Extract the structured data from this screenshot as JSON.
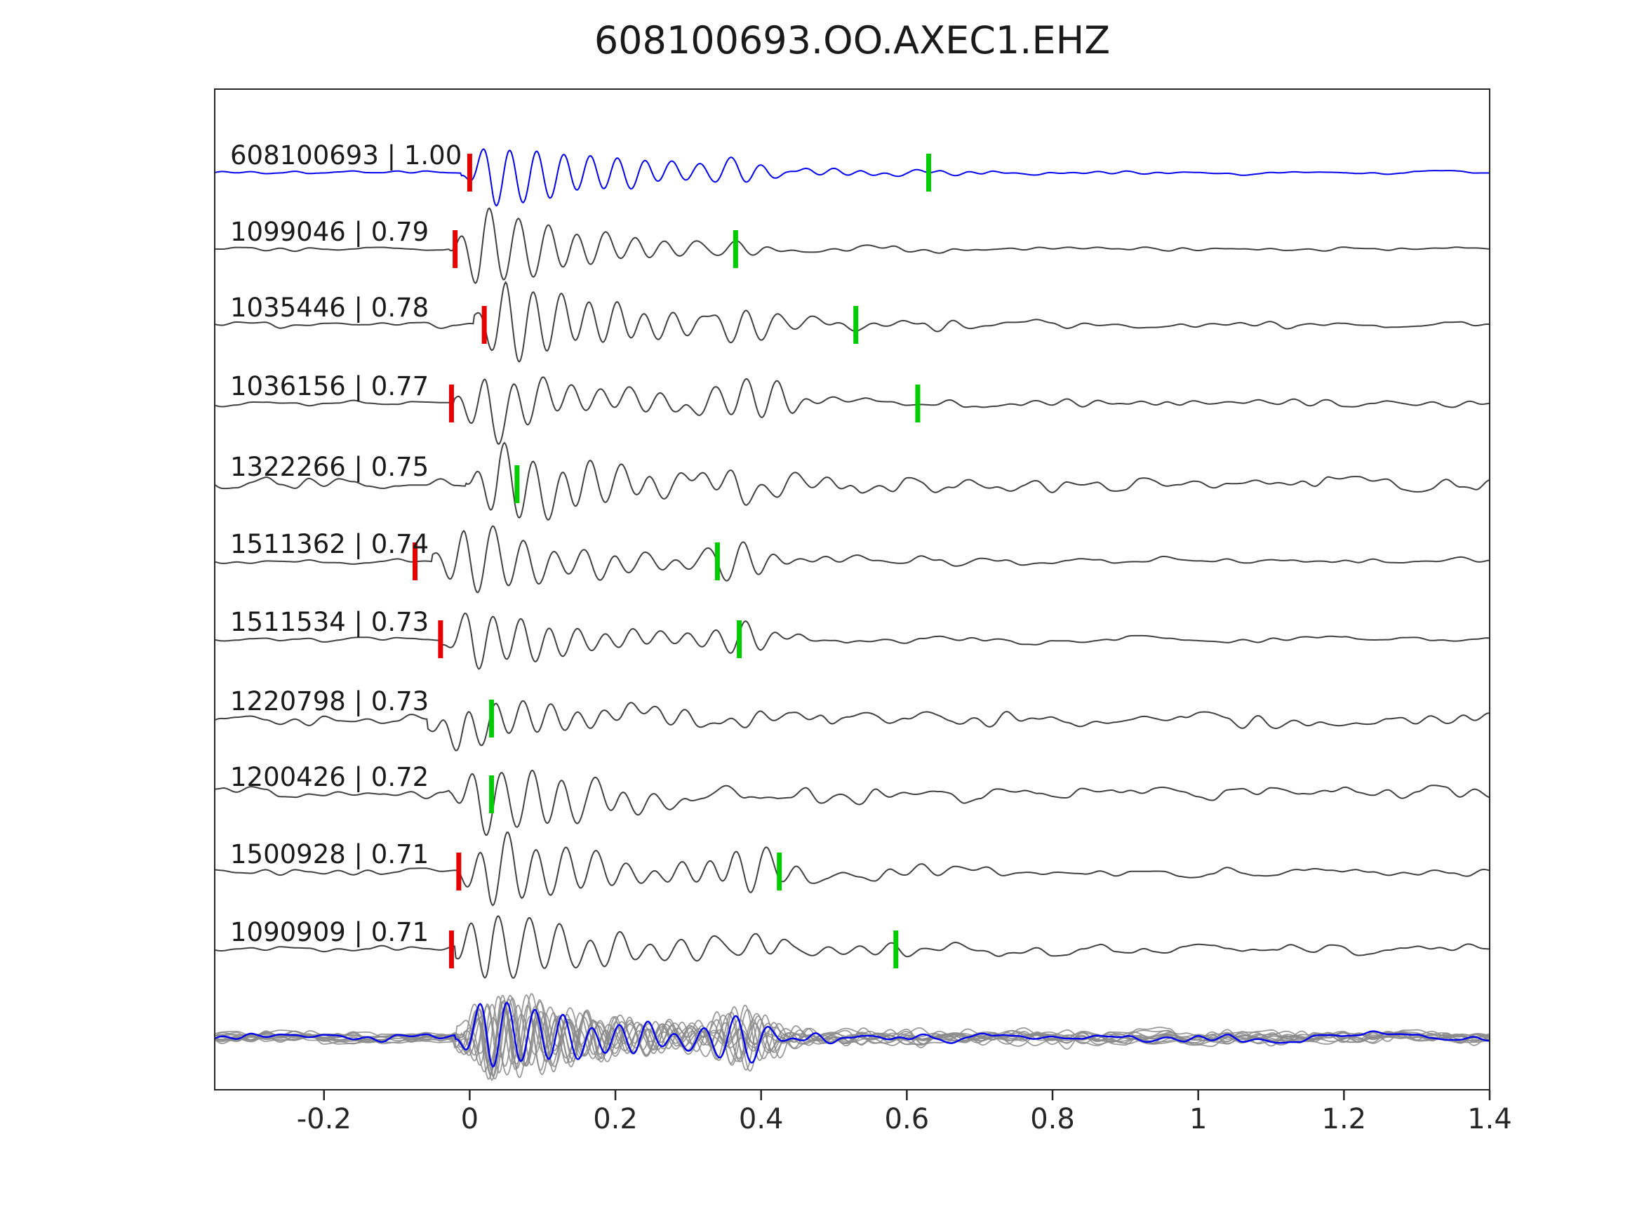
{
  "chart_data": {
    "type": "line",
    "title": "608100693.OO.AXEC1.EHZ",
    "xlabel": "",
    "ylabel": "",
    "x_range": [
      -0.35,
      1.4
    ],
    "x_ticks": [
      -0.2,
      0,
      0.2,
      0.4,
      0.6,
      0.8,
      1,
      1.2,
      1.4
    ],
    "x_tick_labels": [
      "-0.2",
      "0",
      "0.2",
      "0.4",
      "0.6",
      "0.8",
      "1",
      "1.2",
      "1.4"
    ],
    "grid": false,
    "legend": false,
    "colors": {
      "template_trace": "#0000ee",
      "detection_trace": "#404040",
      "red_pick": "#e60000",
      "green_pick": "#00cc00",
      "stack_gray": "#8a8a8a",
      "axis": "#262626",
      "text": "#1a1a1a"
    },
    "traces": [
      {
        "id": "608100693",
        "correlation": 1.0,
        "label": "608100693 | 1.00",
        "is_template": true,
        "red_pick_x": 0.0,
        "green_pick_x": 0.63,
        "synth": {
          "seed": 101,
          "onset": -0.012,
          "freq": 27,
          "amp": 0.78,
          "noise": 0.05,
          "coda": 0.16,
          "codaTau": 0.5,
          "decay": 0.2,
          "p2": 0.38,
          "p2amp": 0.45
        }
      },
      {
        "id": "1099046",
        "correlation": 0.79,
        "label": "1099046 | 0.79",
        "is_template": false,
        "red_pick_x": -0.02,
        "green_pick_x": 0.365,
        "synth": {
          "seed": 202,
          "onset": -0.03,
          "freq": 25,
          "amp": 0.95,
          "noise": 0.06,
          "coda": 0.16,
          "codaTau": 0.7,
          "decay": 0.16,
          "p2": 0.37,
          "p2amp": 0.3
        }
      },
      {
        "id": "1035446",
        "correlation": 0.78,
        "label": "1035446 | 0.78",
        "is_template": false,
        "red_pick_x": 0.02,
        "green_pick_x": 0.53,
        "synth": {
          "seed": 303,
          "onset": 0.005,
          "freq": 26,
          "amp": 1.0,
          "noise": 0.1,
          "coda": 0.2,
          "codaTau": 0.8,
          "decay": 0.17,
          "p2": 0.38,
          "p2amp": 0.55
        }
      },
      {
        "id": "1036156",
        "correlation": 0.77,
        "label": "1036156 | 0.77",
        "is_template": false,
        "red_pick_x": -0.025,
        "green_pick_x": 0.615,
        "synth": {
          "seed": 404,
          "onset": -0.022,
          "freq": 25,
          "amp": 0.82,
          "noise": 0.09,
          "coda": 0.28,
          "codaTau": 1.0,
          "decay": 0.15,
          "p2": 0.39,
          "p2amp": 0.6
        }
      },
      {
        "id": "1322266",
        "correlation": 0.75,
        "label": "1322266 | 0.75",
        "is_template": false,
        "red_pick_x": null,
        "green_pick_x": 0.065,
        "synth": {
          "seed": 505,
          "onset": -0.005,
          "freq": 25,
          "amp": 0.92,
          "noise": 0.2,
          "coda": 0.24,
          "codaTau": 0.9,
          "decay": 0.18,
          "p2": 0.37,
          "p2amp": 0.3
        }
      },
      {
        "id": "1511362",
        "correlation": 0.74,
        "label": "1511362 | 0.74",
        "is_template": false,
        "red_pick_x": -0.075,
        "green_pick_x": 0.34,
        "synth": {
          "seed": 606,
          "onset": -0.052,
          "freq": 24,
          "amp": 0.85,
          "noise": 0.07,
          "coda": 0.22,
          "codaTau": 0.9,
          "decay": 0.17,
          "p2": 0.38,
          "p2amp": 0.5
        }
      },
      {
        "id": "1511534",
        "correlation": 0.73,
        "label": "1511534 | 0.73",
        "is_template": false,
        "red_pick_x": -0.04,
        "green_pick_x": 0.37,
        "synth": {
          "seed": 707,
          "onset": -0.04,
          "freq": 26,
          "amp": 0.72,
          "noise": 0.07,
          "coda": 0.16,
          "codaTau": 0.8,
          "decay": 0.16,
          "p2": 0.37,
          "p2amp": 0.35
        }
      },
      {
        "id": "1220798",
        "correlation": 0.73,
        "label": "1220798 | 0.73",
        "is_template": false,
        "red_pick_x": null,
        "green_pick_x": 0.03,
        "synth": {
          "seed": 808,
          "onset": -0.058,
          "freq": 27,
          "amp": 0.55,
          "noise": 0.17,
          "coda": 0.28,
          "codaTau": 1.2,
          "decay": 0.2,
          "p2": 0.38,
          "p2amp": 0.25
        }
      },
      {
        "id": "1200426",
        "correlation": 0.72,
        "label": "1200426 | 0.72",
        "is_template": false,
        "red_pick_x": null,
        "green_pick_x": 0.03,
        "synth": {
          "seed": 909,
          "onset": -0.028,
          "freq": 24,
          "amp": 0.95,
          "noise": 0.19,
          "coda": 0.24,
          "codaTau": 0.9,
          "decay": 0.18,
          "p2": 0.36,
          "p2amp": 0.35
        }
      },
      {
        "id": "1500928",
        "correlation": 0.71,
        "label": "1500928 | 0.71",
        "is_template": false,
        "red_pick_x": -0.015,
        "green_pick_x": 0.425,
        "synth": {
          "seed": 1010,
          "onset": -0.018,
          "freq": 25,
          "amp": 0.9,
          "noise": 0.09,
          "coda": 0.3,
          "codaTau": 1.1,
          "decay": 0.17,
          "p2": 0.38,
          "p2amp": 0.6
        }
      },
      {
        "id": "1090909",
        "correlation": 0.71,
        "label": "1090909 | 0.71",
        "is_template": false,
        "red_pick_x": -0.025,
        "green_pick_x": 0.585,
        "synth": {
          "seed": 1111,
          "onset": -0.02,
          "freq": 24,
          "amp": 0.88,
          "noise": 0.1,
          "coda": 0.32,
          "codaTau": 1.2,
          "decay": 0.18,
          "p2": 0.4,
          "p2amp": 0.5
        }
      }
    ],
    "stack_overlay": {
      "n_gray_traces": 12,
      "blue_synth": {
        "seed": 999,
        "onset": -0.02,
        "freq": 26,
        "amp": 1.05,
        "noise": 0.12,
        "coda": 0.28,
        "codaTau": 0.7,
        "decay": 0.17,
        "p2": 0.38,
        "p2amp": 0.55
      }
    }
  }
}
